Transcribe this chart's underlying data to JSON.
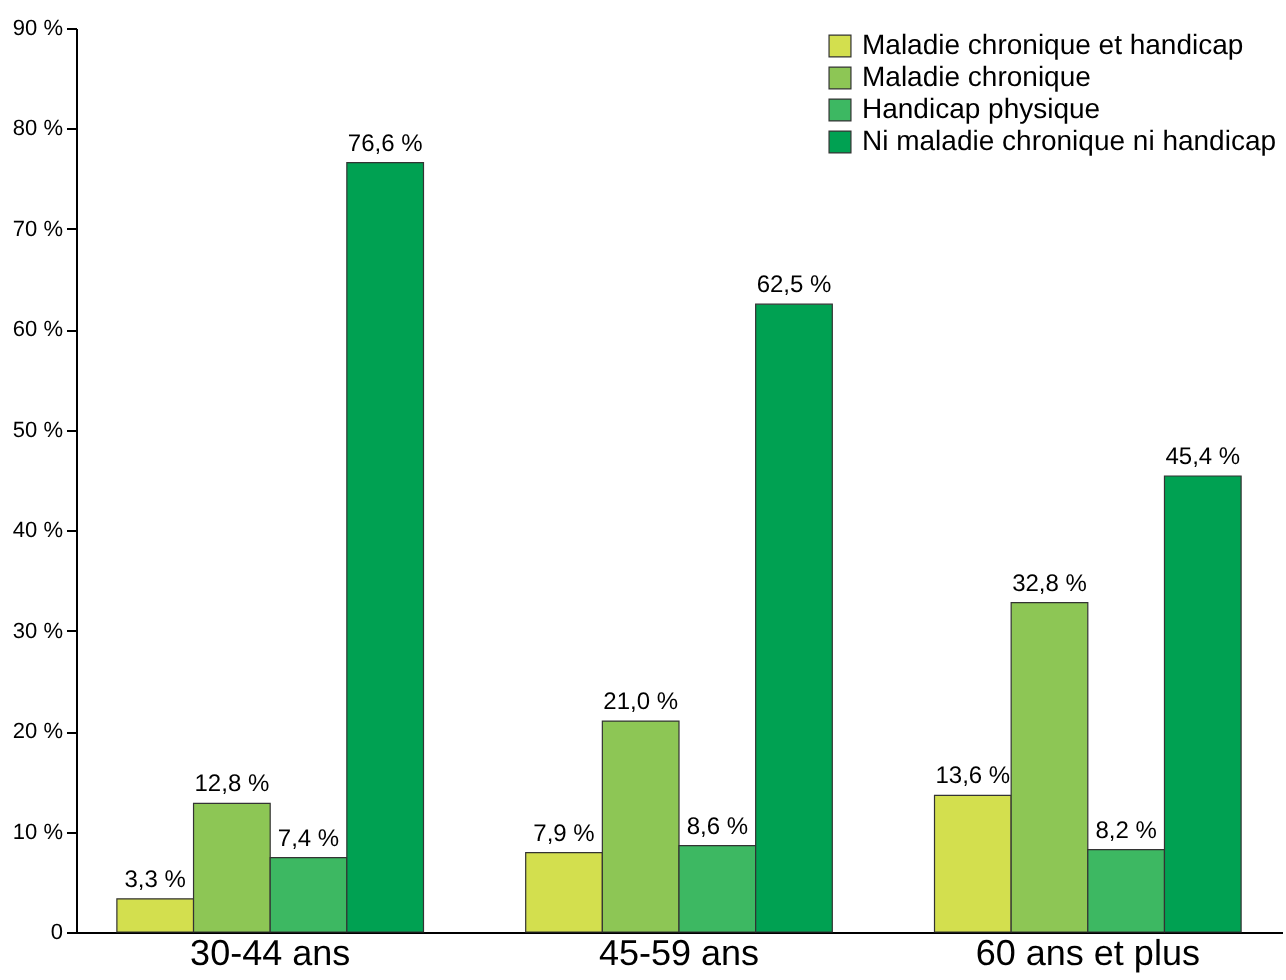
{
  "chart_data": {
    "type": "bar",
    "categories": [
      "30-44 ans",
      "45-59 ans",
      "60 ans et plus"
    ],
    "series": [
      {
        "name": "Maladie chronique et handicap",
        "color": "#d3df4e",
        "values": [
          3.3,
          7.9,
          13.6
        ],
        "value_labels": [
          "3,3 %",
          "7,9 %",
          "13,6 %"
        ]
      },
      {
        "name": "Maladie chronique",
        "color": "#8dc655",
        "values": [
          12.8,
          21.0,
          32.8
        ],
        "value_labels": [
          "12,8 %",
          "21,0 %",
          "32,8 %"
        ]
      },
      {
        "name": "Handicap physique",
        "color": "#3db862",
        "values": [
          7.4,
          8.6,
          8.2
        ],
        "value_labels": [
          "7,4 %",
          "8,6 %",
          "8,2 %"
        ]
      },
      {
        "name": "Ni maladie chronique ni handicap",
        "color": "#00a152",
        "values": [
          76.6,
          62.5,
          45.4
        ],
        "value_labels": [
          "76,6 %",
          "62,5 %",
          "45,4 %"
        ]
      }
    ],
    "ylim": [
      0,
      90
    ],
    "yticks": [
      {
        "value": 0,
        "label": "0"
      },
      {
        "value": 10,
        "label": "10 %"
      },
      {
        "value": 20,
        "label": "20 %"
      },
      {
        "value": 30,
        "label": "30 %"
      },
      {
        "value": 40,
        "label": "40 %"
      },
      {
        "value": 50,
        "label": "50 %"
      },
      {
        "value": 60,
        "label": "60 %"
      },
      {
        "value": 70,
        "label": "70 %"
      },
      {
        "value": 80,
        "label": "80 %"
      },
      {
        "value": 90,
        "label": "90 %"
      }
    ],
    "legend": "top right",
    "grid": false
  }
}
